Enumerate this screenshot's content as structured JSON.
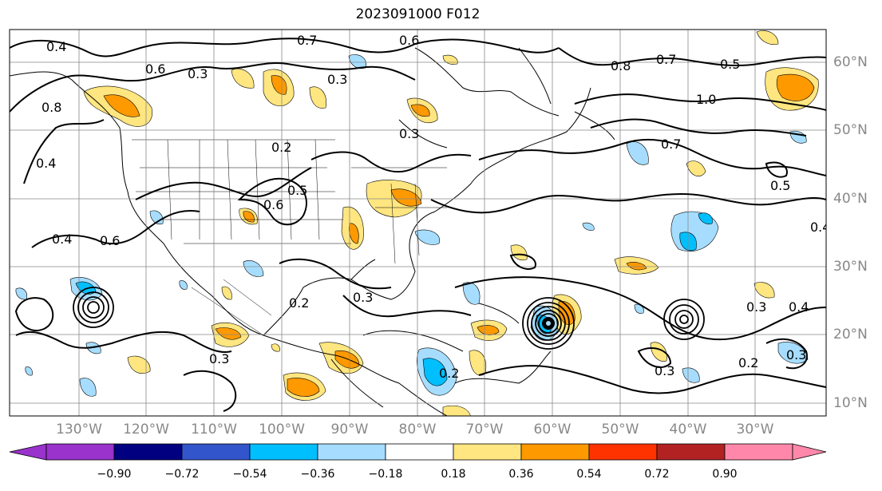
{
  "title": "2023091000 F012",
  "lon_labels": [
    "130°W",
    "120°W",
    "110°W",
    "100°W",
    "90°W",
    "80°W",
    "70°W",
    "60°W",
    "50°W",
    "40°W",
    "30°W"
  ],
  "lat_labels": [
    "60°N",
    "50°N",
    "40°N",
    "30°N",
    "20°N",
    "10°N"
  ],
  "colorbar": {
    "ticks": [
      "−0.90",
      "−0.72",
      "−0.54",
      "−0.36",
      "−0.18",
      "0.18",
      "0.36",
      "0.54",
      "0.72",
      "0.90"
    ],
    "colors": [
      "#9933cc",
      "#000080",
      "#3355cc",
      "#00bfff",
      "#a6ddff",
      "#ffffff",
      "#ffe680",
      "#ff9900",
      "#ff3300",
      "#b22222",
      "#ff88aa"
    ]
  },
  "contour_labels": {
    "l1": "0.4",
    "l2": "0.7",
    "l3": "0.6",
    "l4": "0.6",
    "l5": "0.3",
    "l6": "0.8",
    "l7": "0.8",
    "l8": "0.7",
    "l9": "0.5",
    "l10": "1.0",
    "l11": "0.7",
    "l12": "0.5",
    "l13": "0.3",
    "l14": "0.2",
    "l15": "0.6",
    "l16": "0.4",
    "l17": "0.6",
    "l18": "0.3",
    "l19": "0.2",
    "l20": "0.3",
    "l21": "0.4",
    "l22": "0.3",
    "l23": "0.2",
    "l24": "0.3",
    "l25": "0.2",
    "l26": "0.3",
    "l27": "0.5",
    "l28": "0.3",
    "l29": "0.4",
    "l30": "0.4"
  }
}
